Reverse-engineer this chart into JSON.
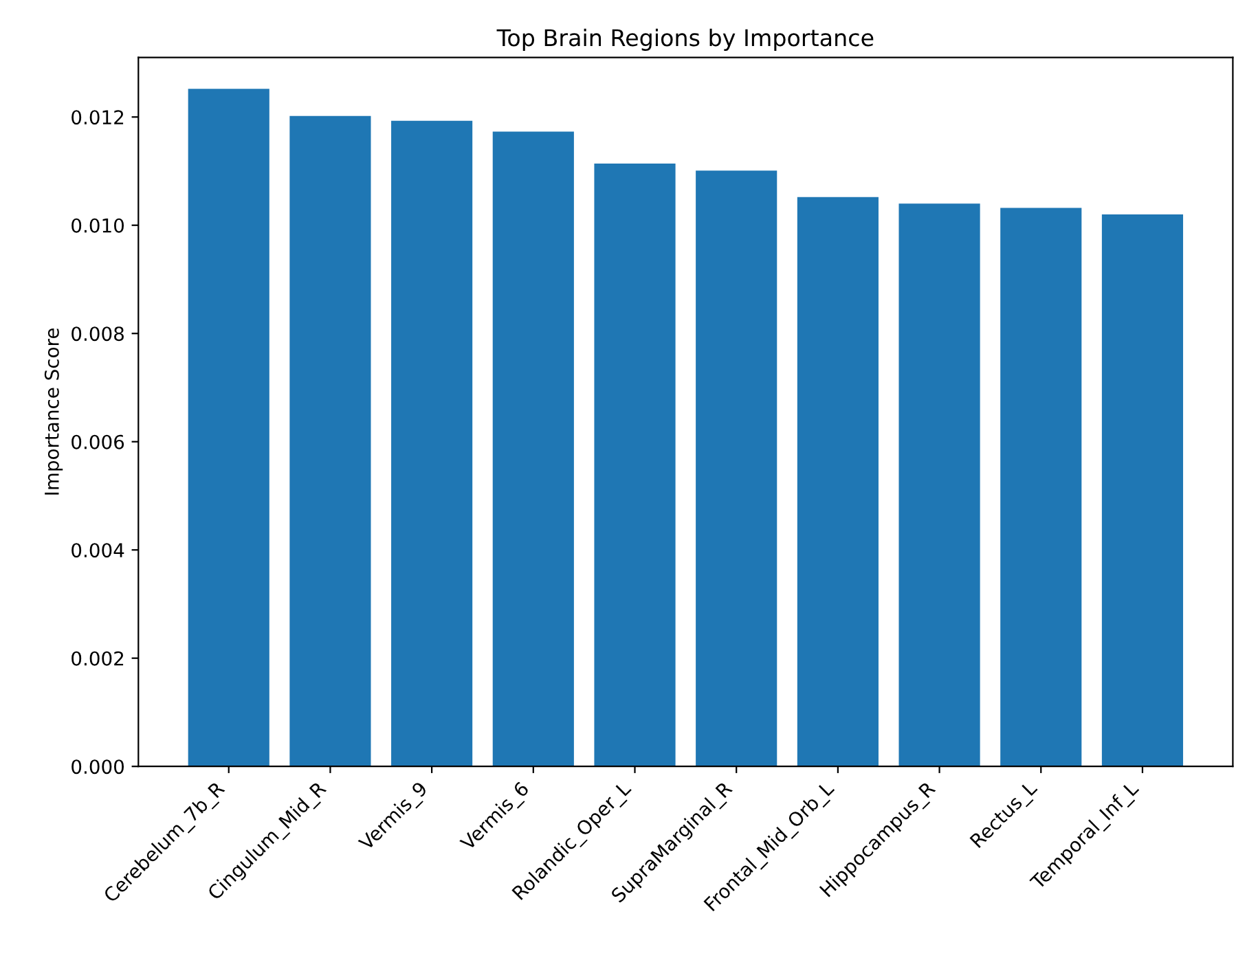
{
  "chart_data": {
    "type": "bar",
    "title": "Top Brain Regions by Importance",
    "ylabel": "Importance Score",
    "categories": [
      "Cerebelum_7b_R",
      "Cingulum_Mid_R",
      "Vermis_9",
      "Vermis_6",
      "Rolandic_Oper_L",
      "SupraMarginal_R",
      "Frontal_Mid_Orb_L",
      "Hippocampus_R",
      "Rectus_L",
      "Temporal_Inf_L"
    ],
    "values": [
      0.01252,
      0.01202,
      0.01193,
      0.01173,
      0.01114,
      0.01101,
      0.01052,
      0.0104,
      0.01032,
      0.0102
    ],
    "color": "#1f77b4",
    "ylim": [
      0,
      0.0131
    ],
    "yticks": [
      {
        "value": 0,
        "label": "0.000"
      },
      {
        "value": 0.002,
        "label": "0.002"
      },
      {
        "value": 0.004,
        "label": "0.004"
      },
      {
        "value": 0.006,
        "label": "0.006"
      },
      {
        "value": 0.008,
        "label": "0.008"
      },
      {
        "value": 0.01,
        "label": "0.010"
      },
      {
        "value": 0.012,
        "label": "0.012"
      }
    ],
    "grid": false
  }
}
